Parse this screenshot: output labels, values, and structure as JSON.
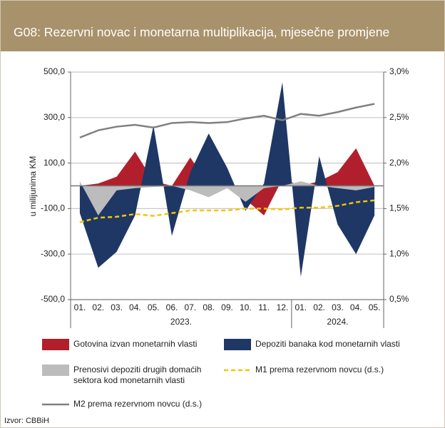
{
  "chart_data": {
    "type": "area",
    "title": "G08: Rezervni novac i monetarna multiplikacija, mjesečne promjene",
    "y_label": "u milijunima KM",
    "source": "Izvor: CBBiH",
    "categories": [
      "01.",
      "02.",
      "03.",
      "04.",
      "05.",
      "06.",
      "07.",
      "08.",
      "09.",
      "10.",
      "11.",
      "12.",
      "01.",
      "02.",
      "03.",
      "04.",
      "05."
    ],
    "years": [
      "2023.",
      "2024."
    ],
    "ylim": [
      -500,
      500
    ],
    "yticks": [
      {
        "value": 500,
        "label": "500,0"
      },
      {
        "value": 300,
        "label": "300,0"
      },
      {
        "value": 100,
        "label": "100,0"
      },
      {
        "value": -100,
        "label": "-100,0"
      },
      {
        "value": -300,
        "label": "-300,0"
      },
      {
        "value": -500,
        "label": "-500,0"
      }
    ],
    "y2lim": [
      0.5,
      3.0
    ],
    "y2ticks": [
      {
        "value": 3.0,
        "label": "3,0%"
      },
      {
        "value": 2.5,
        "label": "2,5%"
      },
      {
        "value": 2.0,
        "label": "2,0%"
      },
      {
        "value": 1.5,
        "label": "1,5%"
      },
      {
        "value": 1.0,
        "label": "1,0%"
      },
      {
        "value": 0.5,
        "label": "0,5%"
      }
    ],
    "grid": true,
    "series": [
      {
        "name": "Gotovina izvan monetarnih vlasti",
        "type": "area",
        "color": "#b11f2c",
        "values": [
          0,
          10,
          40,
          150,
          20,
          0,
          125,
          0,
          0,
          -60,
          -130,
          30,
          0,
          20,
          60,
          165,
          0
        ]
      },
      {
        "name": "Depoziti banaka kod monetarnih vlasti",
        "type": "area",
        "color": "#1e3765",
        "values": [
          -120,
          -360,
          -290,
          -130,
          265,
          -220,
          60,
          230,
          80,
          -110,
          10,
          455,
          -400,
          130,
          -170,
          -300,
          -130
        ]
      },
      {
        "name": "Prenosivi depoziti drugih domaćih sektora kod monetarnih vlasti",
        "type": "area",
        "color": "#bcbcbc",
        "values": [
          20,
          -130,
          -20,
          -10,
          -5,
          0,
          -20,
          -50,
          -10,
          -70,
          -10,
          0,
          20,
          0,
          -10,
          -20,
          -5
        ]
      },
      {
        "name": "M1 prema rezervnom novcu (d.s.)",
        "type": "line",
        "dashed": true,
        "axis": "y2",
        "color": "#f5c400",
        "values": [
          1.35,
          1.4,
          1.41,
          1.44,
          1.42,
          1.45,
          1.48,
          1.48,
          1.48,
          1.5,
          1.5,
          1.49,
          1.51,
          1.51,
          1.53,
          1.57,
          1.59
        ]
      },
      {
        "name": "M2 prema rezervnom novcu (d.s.)",
        "type": "line",
        "axis": "y2",
        "color": "#808080",
        "values": [
          2.28,
          2.36,
          2.4,
          2.42,
          2.39,
          2.44,
          2.45,
          2.44,
          2.45,
          2.49,
          2.52,
          2.47,
          2.54,
          2.52,
          2.56,
          2.61,
          2.65
        ]
      }
    ]
  }
}
